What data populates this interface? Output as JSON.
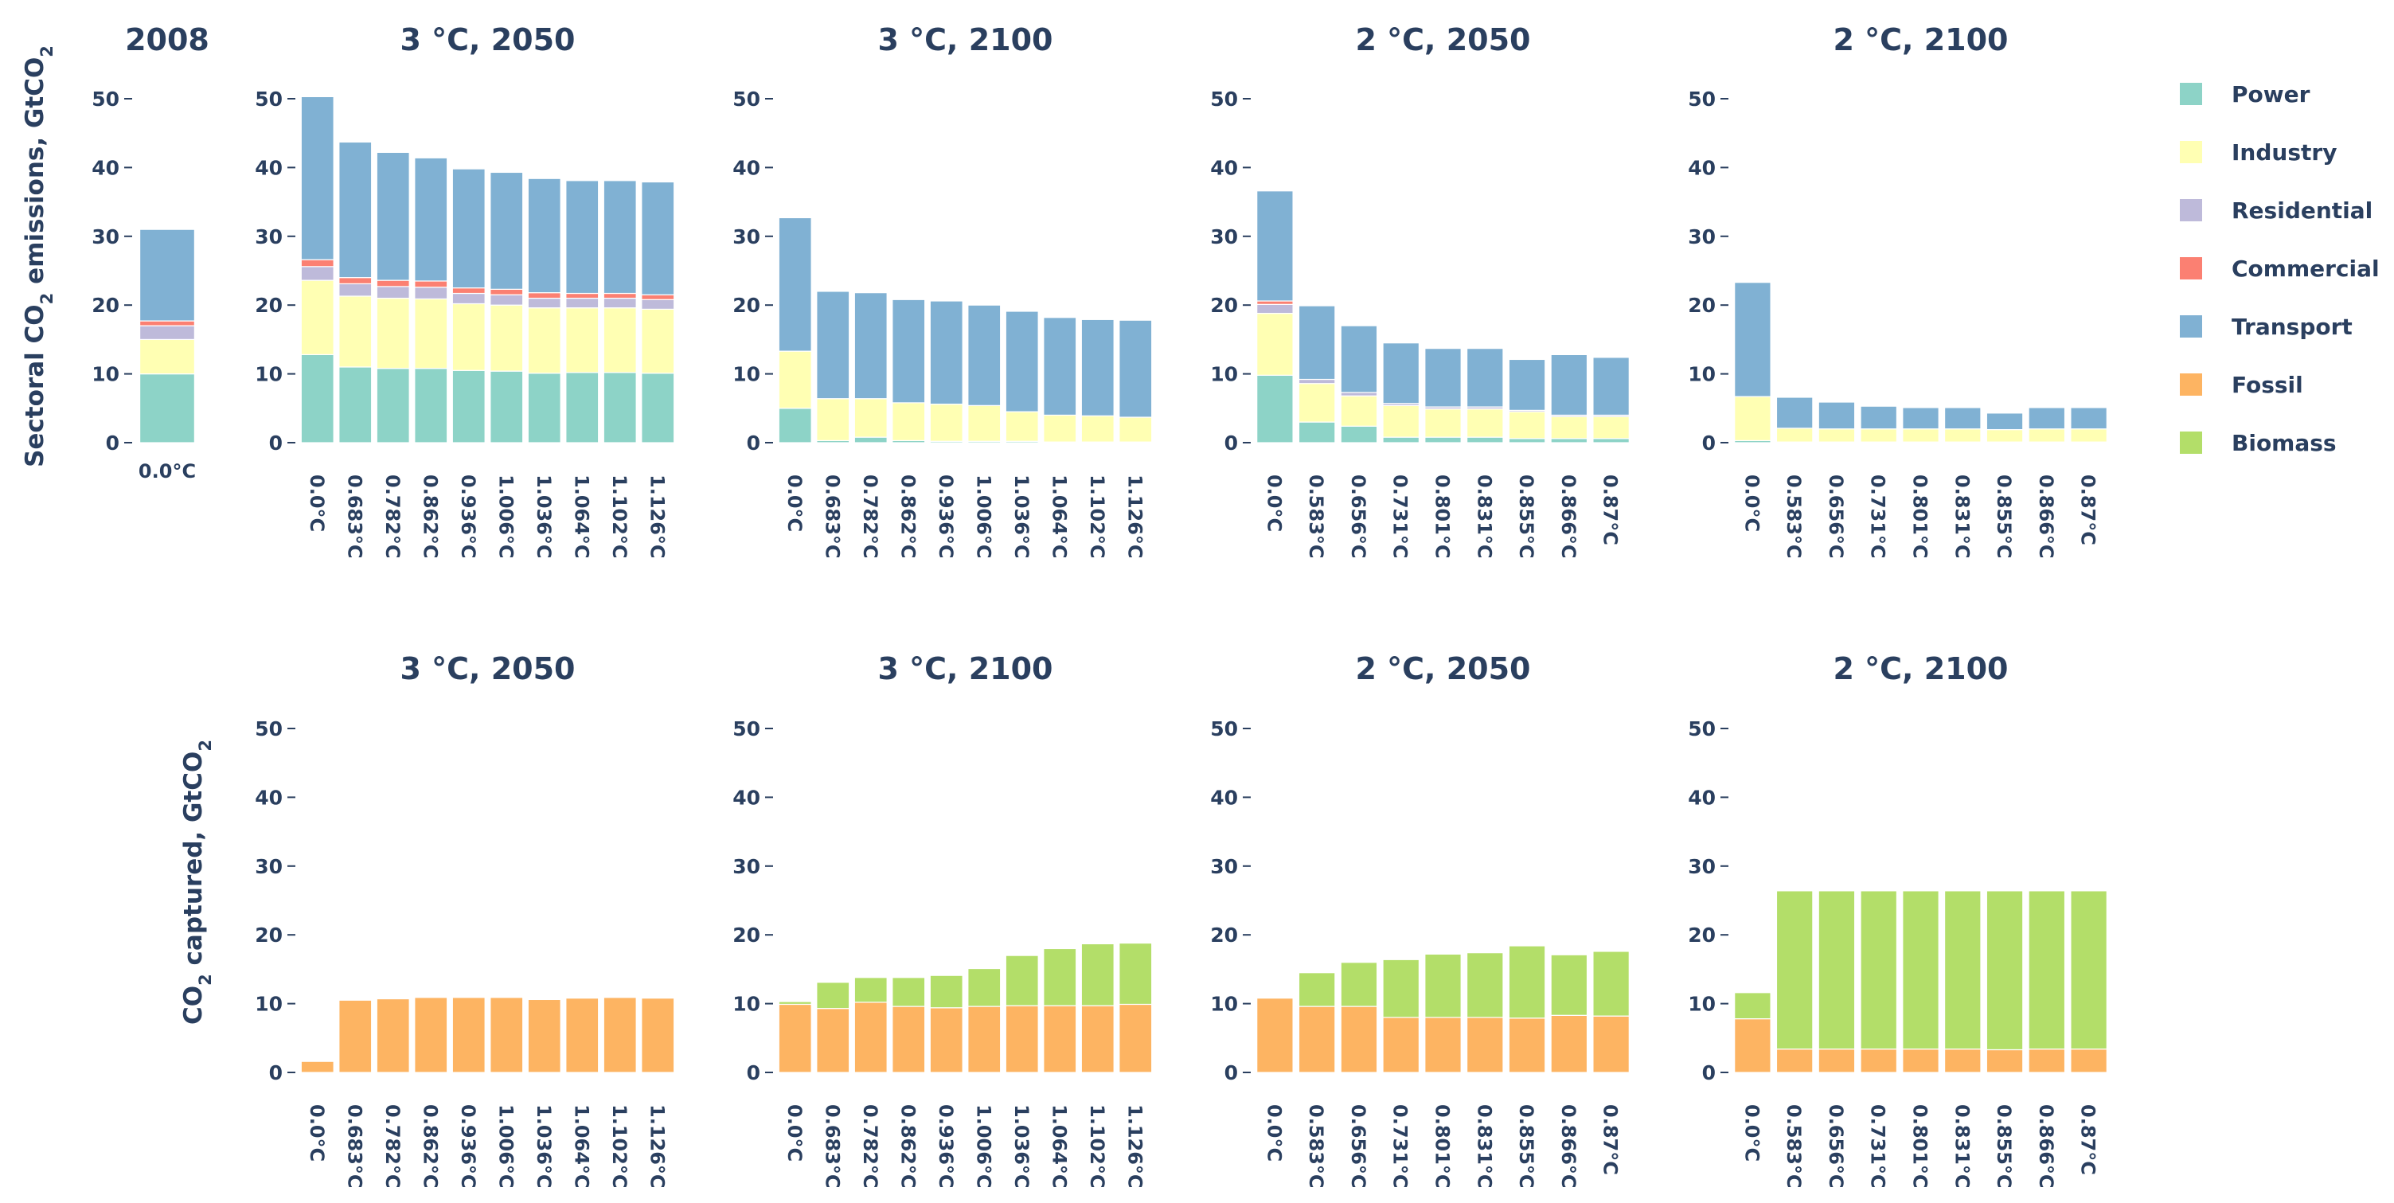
{
  "y_axis_titles": {
    "top": {
      "before": "Sectoral CO",
      "sub": "2",
      "middle": " emissions, GtCO",
      "sub2": "2"
    },
    "bottom": {
      "before": "CO",
      "sub": "2",
      "middle": " captured, GtCO",
      "sub2": "2"
    }
  },
  "legend": [
    {
      "name": "Power",
      "color": "#8dd3c7"
    },
    {
      "name": "Industry",
      "color": "#ffffb3"
    },
    {
      "name": "Residential",
      "color": "#bebada"
    },
    {
      "name": "Commercial",
      "color": "#fb8072"
    },
    {
      "name": "Transport",
      "color": "#80b1d3"
    },
    {
      "name": "Fossil",
      "color": "#fdb462"
    },
    {
      "name": "Biomass",
      "color": "#b3de69"
    }
  ],
  "chart_data": [
    {
      "type": "bar",
      "stacked": true,
      "row": "emissions",
      "title": "2008",
      "ylim": [
        0,
        50
      ],
      "yticks": [
        0,
        10,
        20,
        30,
        40,
        50
      ],
      "categories": [
        "0.0°C"
      ],
      "horizontal_ticks": true,
      "series": [
        {
          "name": "Power",
          "values": [
            10
          ]
        },
        {
          "name": "Industry",
          "values": [
            5
          ]
        },
        {
          "name": "Residential",
          "values": [
            2
          ]
        },
        {
          "name": "Commercial",
          "values": [
            0.7
          ]
        },
        {
          "name": "Transport",
          "values": [
            13.3
          ]
        }
      ]
    },
    {
      "type": "bar",
      "stacked": true,
      "row": "emissions",
      "title": "3 °C, 2050",
      "ylim": [
        0,
        50
      ],
      "yticks": [
        0,
        10,
        20,
        30,
        40,
        50
      ],
      "categories": [
        "0.0°C",
        "0.683°C",
        "0.782°C",
        "0.862°C",
        "0.936°C",
        "1.006°C",
        "1.036°C",
        "1.064°C",
        "1.102°C",
        "1.126°C"
      ],
      "series": [
        {
          "name": "Power",
          "values": [
            12.8,
            11,
            10.8,
            10.8,
            10.5,
            10.4,
            10.1,
            10.2,
            10.2,
            10.1
          ]
        },
        {
          "name": "Industry",
          "values": [
            10.8,
            10.3,
            10.2,
            10.1,
            9.7,
            9.6,
            9.5,
            9.4,
            9.4,
            9.3
          ]
        },
        {
          "name": "Residential",
          "values": [
            2,
            1.8,
            1.7,
            1.7,
            1.5,
            1.5,
            1.4,
            1.4,
            1.4,
            1.4
          ]
        },
        {
          "name": "Commercial",
          "values": [
            1,
            0.9,
            0.9,
            0.9,
            0.8,
            0.8,
            0.8,
            0.7,
            0.7,
            0.7
          ]
        },
        {
          "name": "Transport",
          "values": [
            23.7,
            19.7,
            18.6,
            17.9,
            17.3,
            17,
            16.6,
            16.4,
            16.4,
            16.4
          ]
        }
      ]
    },
    {
      "type": "bar",
      "stacked": true,
      "row": "emissions",
      "title": "3 °C, 2100",
      "ylim": [
        0,
        50
      ],
      "yticks": [
        0,
        10,
        20,
        30,
        40,
        50
      ],
      "categories": [
        "0.0°C",
        "0.683°C",
        "0.782°C",
        "0.862°C",
        "0.936°C",
        "1.006°C",
        "1.036°C",
        "1.064°C",
        "1.102°C",
        "1.126°C"
      ],
      "series": [
        {
          "name": "Power",
          "values": [
            5,
            0.3,
            0.8,
            0.3,
            0.2,
            0.2,
            0.2,
            0.1,
            0.1,
            0.1
          ]
        },
        {
          "name": "Industry",
          "values": [
            8.3,
            6.1,
            5.6,
            5.5,
            5.4,
            5.2,
            4.3,
            3.9,
            3.8,
            3.6
          ]
        },
        {
          "name": "Residential",
          "values": [
            0,
            0,
            0,
            0,
            0,
            0,
            0,
            0,
            0,
            0
          ]
        },
        {
          "name": "Commercial",
          "values": [
            0,
            0,
            0,
            0,
            0,
            0,
            0,
            0,
            0,
            0
          ]
        },
        {
          "name": "Transport",
          "values": [
            19.4,
            15.6,
            15.4,
            15,
            15,
            14.6,
            14.6,
            14.2,
            14,
            14.1
          ]
        }
      ]
    },
    {
      "type": "bar",
      "stacked": true,
      "row": "emissions",
      "title": "2 °C, 2050",
      "ylim": [
        0,
        50
      ],
      "yticks": [
        0,
        10,
        20,
        30,
        40,
        50
      ],
      "categories": [
        "0.0°C",
        "0.583°C",
        "0.656°C",
        "0.731°C",
        "0.801°C",
        "0.831°C",
        "0.855°C",
        "0.866°C",
        "0.87°C"
      ],
      "series": [
        {
          "name": "Power",
          "values": [
            9.8,
            3,
            2.4,
            0.8,
            0.8,
            0.8,
            0.6,
            0.6,
            0.6
          ]
        },
        {
          "name": "Industry",
          "values": [
            9,
            5.6,
            4.4,
            4.6,
            4.1,
            4.1,
            3.9,
            3.2,
            3.2
          ]
        },
        {
          "name": "Residential",
          "values": [
            1.3,
            0.6,
            0.5,
            0.3,
            0.3,
            0.3,
            0.2,
            0.2,
            0.2
          ]
        },
        {
          "name": "Commercial",
          "values": [
            0.5,
            0,
            0,
            0,
            0,
            0,
            0,
            0,
            0
          ]
        },
        {
          "name": "Transport",
          "values": [
            16,
            10.7,
            9.7,
            8.8,
            8.5,
            8.5,
            7.4,
            8.8,
            8.4
          ]
        }
      ]
    },
    {
      "type": "bar",
      "stacked": true,
      "row": "emissions",
      "title": "2 °C, 2100",
      "ylim": [
        0,
        50
      ],
      "yticks": [
        0,
        10,
        20,
        30,
        40,
        50
      ],
      "categories": [
        "0.0°C",
        "0.583°C",
        "0.656°C",
        "0.731°C",
        "0.801°C",
        "0.831°C",
        "0.855°C",
        "0.866°C",
        "0.87°C"
      ],
      "series": [
        {
          "name": "Power",
          "values": [
            0.3,
            0.1,
            0.1,
            0.1,
            0.1,
            0.1,
            0.1,
            0.1,
            0.1
          ]
        },
        {
          "name": "Industry",
          "values": [
            6.4,
            2,
            1.9,
            1.9,
            1.9,
            1.9,
            1.8,
            1.9,
            1.9
          ]
        },
        {
          "name": "Residential",
          "values": [
            0,
            0,
            0,
            0,
            0,
            0,
            0,
            0,
            0
          ]
        },
        {
          "name": "Commercial",
          "values": [
            0,
            0,
            0,
            0,
            0,
            0,
            0,
            0,
            0
          ]
        },
        {
          "name": "Transport",
          "values": [
            16.6,
            4.5,
            3.9,
            3.3,
            3.1,
            3.1,
            2.4,
            3.1,
            3.1
          ]
        }
      ]
    },
    {
      "type": "bar",
      "stacked": true,
      "row": "captured",
      "title": "3 °C, 2050",
      "ylim": [
        0,
        50
      ],
      "yticks": [
        0,
        10,
        20,
        30,
        40,
        50
      ],
      "categories": [
        "0.0°C",
        "0.683°C",
        "0.782°C",
        "0.862°C",
        "0.936°C",
        "1.006°C",
        "1.036°C",
        "1.064°C",
        "1.102°C",
        "1.126°C"
      ],
      "series": [
        {
          "name": "Fossil",
          "values": [
            1.6,
            10.5,
            10.7,
            10.9,
            10.9,
            10.9,
            10.6,
            10.8,
            10.9,
            10.8
          ]
        },
        {
          "name": "Biomass",
          "values": [
            0,
            0,
            0,
            0,
            0,
            0,
            0,
            0,
            0,
            0
          ]
        }
      ]
    },
    {
      "type": "bar",
      "stacked": true,
      "row": "captured",
      "title": "3 °C, 2100",
      "ylim": [
        0,
        50
      ],
      "yticks": [
        0,
        10,
        20,
        30,
        40,
        50
      ],
      "categories": [
        "0.0°C",
        "0.683°C",
        "0.782°C",
        "0.862°C",
        "0.936°C",
        "1.006°C",
        "1.036°C",
        "1.064°C",
        "1.102°C",
        "1.126°C"
      ],
      "series": [
        {
          "name": "Fossil",
          "values": [
            9.9,
            9.3,
            10.2,
            9.6,
            9.4,
            9.6,
            9.7,
            9.7,
            9.7,
            9.9
          ]
        },
        {
          "name": "Biomass",
          "values": [
            0.4,
            3.8,
            3.6,
            4.2,
            4.7,
            5.5,
            7.3,
            8.3,
            9,
            8.9
          ]
        }
      ]
    },
    {
      "type": "bar",
      "stacked": true,
      "row": "captured",
      "title": "2 °C, 2050",
      "ylim": [
        0,
        50
      ],
      "yticks": [
        0,
        10,
        20,
        30,
        40,
        50
      ],
      "categories": [
        "0.0°C",
        "0.583°C",
        "0.656°C",
        "0.731°C",
        "0.801°C",
        "0.831°C",
        "0.855°C",
        "0.866°C",
        "0.87°C"
      ],
      "series": [
        {
          "name": "Fossil",
          "values": [
            10.8,
            9.6,
            9.6,
            8,
            8,
            8,
            7.9,
            8.3,
            8.2
          ]
        },
        {
          "name": "Biomass",
          "values": [
            0,
            4.9,
            6.4,
            8.4,
            9.2,
            9.4,
            10.5,
            8.8,
            9.4
          ]
        }
      ]
    },
    {
      "type": "bar",
      "stacked": true,
      "row": "captured",
      "title": "2 °C, 2100",
      "ylim": [
        0,
        50
      ],
      "yticks": [
        0,
        10,
        20,
        30,
        40,
        50
      ],
      "categories": [
        "0.0°C",
        "0.583°C",
        "0.656°C",
        "0.731°C",
        "0.801°C",
        "0.831°C",
        "0.855°C",
        "0.866°C",
        "0.87°C"
      ],
      "series": [
        {
          "name": "Fossil",
          "values": [
            7.8,
            3.4,
            3.4,
            3.4,
            3.4,
            3.4,
            3.3,
            3.4,
            3.4
          ]
        },
        {
          "name": "Biomass",
          "values": [
            3.8,
            23,
            23,
            23,
            23,
            23,
            23.1,
            23,
            23
          ]
        }
      ]
    }
  ]
}
